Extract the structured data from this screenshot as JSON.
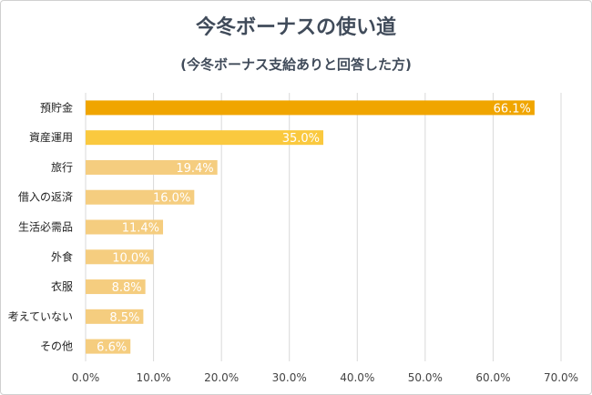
{
  "colors": {
    "highlight": "#F0A500",
    "secondary": "#FAC93F",
    "default": "#F5CD7F",
    "grid": "#d9d9d9",
    "title": "#404b5a"
  },
  "chart_data": {
    "type": "bar",
    "orientation": "horizontal",
    "title": "今冬ボーナスの使い道",
    "subtitle": "(今冬ボーナス支給ありと回答した方)",
    "categories": [
      "預貯金",
      "資産運用",
      "旅行",
      "借入の返済",
      "生活必需品",
      "外食",
      "衣服",
      "考えていない",
      "その他"
    ],
    "values": [
      66.1,
      35.0,
      19.4,
      16.0,
      11.4,
      10.0,
      8.8,
      8.5,
      6.6
    ],
    "data_labels": [
      "66.1%",
      "35.0%",
      "19.4%",
      "16.0%",
      "11.4%",
      "10.0%",
      "8.8%",
      "8.5%",
      "6.6%"
    ],
    "bar_colors": [
      "#F0A500",
      "#FAC93F",
      "#F5CD7F",
      "#F5CD7F",
      "#F5CD7F",
      "#F5CD7F",
      "#F5CD7F",
      "#F5CD7F",
      "#F5CD7F"
    ],
    "xlim": [
      0,
      70
    ],
    "x_ticks": [
      "0.0%",
      "10.0%",
      "20.0%",
      "30.0%",
      "40.0%",
      "50.0%",
      "60.0%",
      "70.0%"
    ],
    "grid": true,
    "legend": "none"
  }
}
